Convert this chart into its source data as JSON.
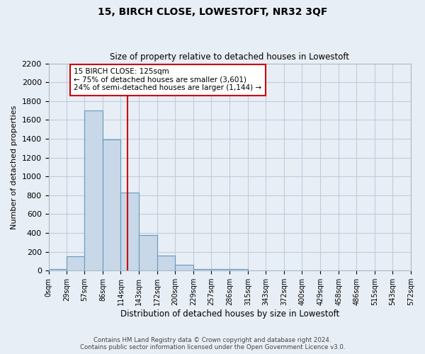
{
  "title": "15, BIRCH CLOSE, LOWESTOFT, NR32 3QF",
  "subtitle": "Size of property relative to detached houses in Lowestoft",
  "xlabel": "Distribution of detached houses by size in Lowestoft",
  "ylabel": "Number of detached properties",
  "bar_values": [
    15,
    155,
    1700,
    1390,
    825,
    380,
    160,
    65,
    20,
    15,
    20,
    0,
    0,
    0,
    0,
    0,
    0,
    0,
    0,
    0
  ],
  "bin_edges": [
    0,
    29,
    57,
    86,
    114,
    143,
    172,
    200,
    229,
    257,
    286,
    315,
    343,
    372,
    400,
    429,
    458,
    486,
    515,
    543,
    572
  ],
  "tick_labels": [
    "0sqm",
    "29sqm",
    "57sqm",
    "86sqm",
    "114sqm",
    "143sqm",
    "172sqm",
    "200sqm",
    "229sqm",
    "257sqm",
    "286sqm",
    "315sqm",
    "343sqm",
    "372sqm",
    "400sqm",
    "429sqm",
    "458sqm",
    "486sqm",
    "515sqm",
    "543sqm",
    "572sqm"
  ],
  "bar_facecolor": "#c8d8e8",
  "bar_edgecolor": "#6699bb",
  "property_line_x": 125,
  "property_line_color": "#cc0000",
  "annotation_box_text": "15 BIRCH CLOSE: 125sqm\n← 75% of detached houses are smaller (3,601)\n24% of semi-detached houses are larger (1,144) →",
  "annotation_box_color": "#cc0000",
  "ylim": [
    0,
    2200
  ],
  "yticks": [
    0,
    200,
    400,
    600,
    800,
    1000,
    1200,
    1400,
    1600,
    1800,
    2000,
    2200
  ],
  "grid_color": "#c0ccdd",
  "background_color": "#e8eef5",
  "footer_line1": "Contains HM Land Registry data © Crown copyright and database right 2024.",
  "footer_line2": "Contains public sector information licensed under the Open Government Licence v3.0."
}
